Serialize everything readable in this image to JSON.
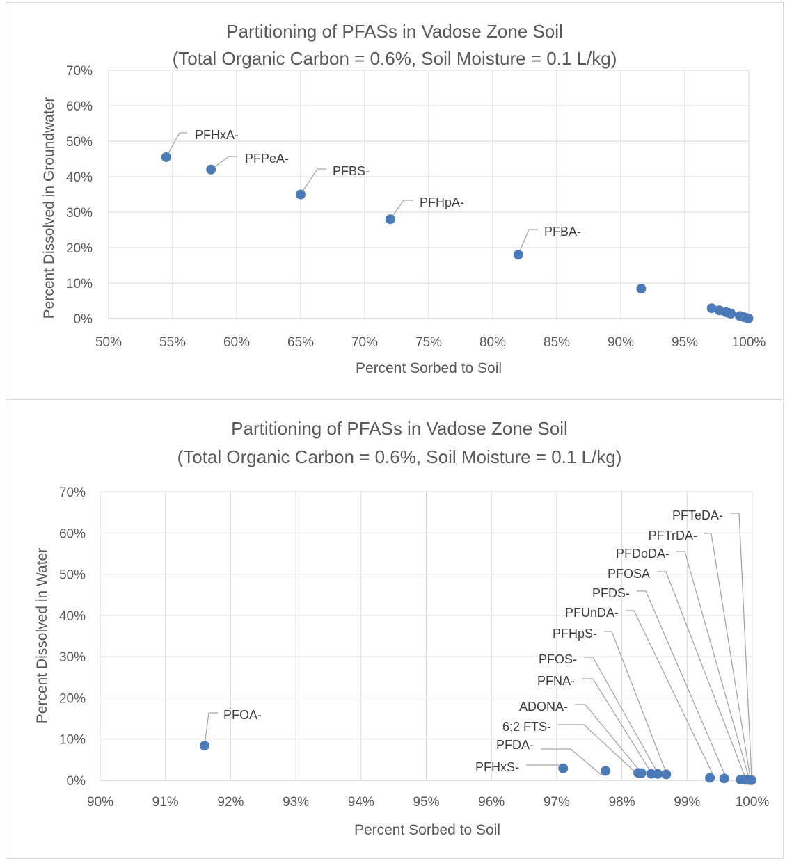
{
  "chart_data": [
    {
      "type": "scatter",
      "title_line1": "Partitioning of PFASs in Vadose Zone Soil",
      "title_line2": "(Total Organic Carbon = 0.6%, Soil Moisture = 0.1 L/kg)",
      "xlabel": "Percent Sorbed to Soil",
      "ylabel": "Percent Dissolved in Groundwater",
      "xlim": [
        50,
        100
      ],
      "ylim": [
        0,
        70
      ],
      "xticks": [
        "50%",
        "55%",
        "60%",
        "65%",
        "70%",
        "75%",
        "80%",
        "85%",
        "90%",
        "95%",
        "100%"
      ],
      "yticks": [
        "0%",
        "10%",
        "20%",
        "30%",
        "40%",
        "50%",
        "60%",
        "70%"
      ],
      "grid": true,
      "points": [
        {
          "x": 54.5,
          "y": 45.5,
          "label": "PFHxA-"
        },
        {
          "x": 58.0,
          "y": 42.0,
          "label": "PFPeA-"
        },
        {
          "x": 65.0,
          "y": 35.0,
          "label": "PFBS-"
        },
        {
          "x": 72.0,
          "y": 28.0,
          "label": "PFHpA-"
        },
        {
          "x": 82.0,
          "y": 18.0,
          "label": "PFBA-"
        },
        {
          "x": 91.6,
          "y": 8.4,
          "label": ""
        },
        {
          "x": 97.1,
          "y": 2.9,
          "label": ""
        },
        {
          "x": 97.7,
          "y": 2.3,
          "label": ""
        },
        {
          "x": 98.2,
          "y": 1.8,
          "label": ""
        },
        {
          "x": 98.4,
          "y": 1.6,
          "label": ""
        },
        {
          "x": 98.6,
          "y": 1.4,
          "label": ""
        },
        {
          "x": 99.3,
          "y": 0.7,
          "label": ""
        },
        {
          "x": 99.6,
          "y": 0.4,
          "label": ""
        },
        {
          "x": 99.85,
          "y": 0.15,
          "label": ""
        },
        {
          "x": 99.97,
          "y": 0.03,
          "label": ""
        }
      ]
    },
    {
      "type": "scatter",
      "title_line1": "Partitioning of PFASs in Vadose Zone Soil",
      "title_line2": "(Total Organic Carbon = 0.6%, Soil Moisture = 0.1 L/kg)",
      "xlabel": "Percent Sorbed to Soil",
      "ylabel": "Percent Dissolved in Water",
      "xlim": [
        90,
        100
      ],
      "ylim": [
        0,
        70
      ],
      "xticks": [
        "90%",
        "91%",
        "92%",
        "93%",
        "94%",
        "95%",
        "96%",
        "97%",
        "98%",
        "99%",
        "100%"
      ],
      "yticks": [
        "0%",
        "10%",
        "20%",
        "30%",
        "40%",
        "50%",
        "60%",
        "70%"
      ],
      "grid": true,
      "points": [
        {
          "x": 91.6,
          "y": 8.4,
          "label": "PFOA-"
        },
        {
          "x": 97.1,
          "y": 2.9,
          "label": "PFHxS-"
        },
        {
          "x": 97.75,
          "y": 2.3,
          "label": "PFDA-"
        },
        {
          "x": 98.25,
          "y": 1.8,
          "label": "6:2 FTS-"
        },
        {
          "x": 98.3,
          "y": 1.75,
          "label": "ADONA-"
        },
        {
          "x": 98.45,
          "y": 1.6,
          "label": "PFNA-"
        },
        {
          "x": 98.55,
          "y": 1.55,
          "label": "PFOS-"
        },
        {
          "x": 98.68,
          "y": 1.45,
          "label": "PFHpS-"
        },
        {
          "x": 99.35,
          "y": 0.6,
          "label": "PFUnDA-"
        },
        {
          "x": 99.57,
          "y": 0.45,
          "label": "PFDS-"
        },
        {
          "x": 99.82,
          "y": 0.15,
          "label": "PFOSA"
        },
        {
          "x": 99.9,
          "y": 0.1,
          "label": "PFDoDA-"
        },
        {
          "x": 99.95,
          "y": 0.07,
          "label": "PFTrDA-"
        },
        {
          "x": 99.99,
          "y": 0.03,
          "label": "PFTeDA-"
        }
      ]
    }
  ]
}
